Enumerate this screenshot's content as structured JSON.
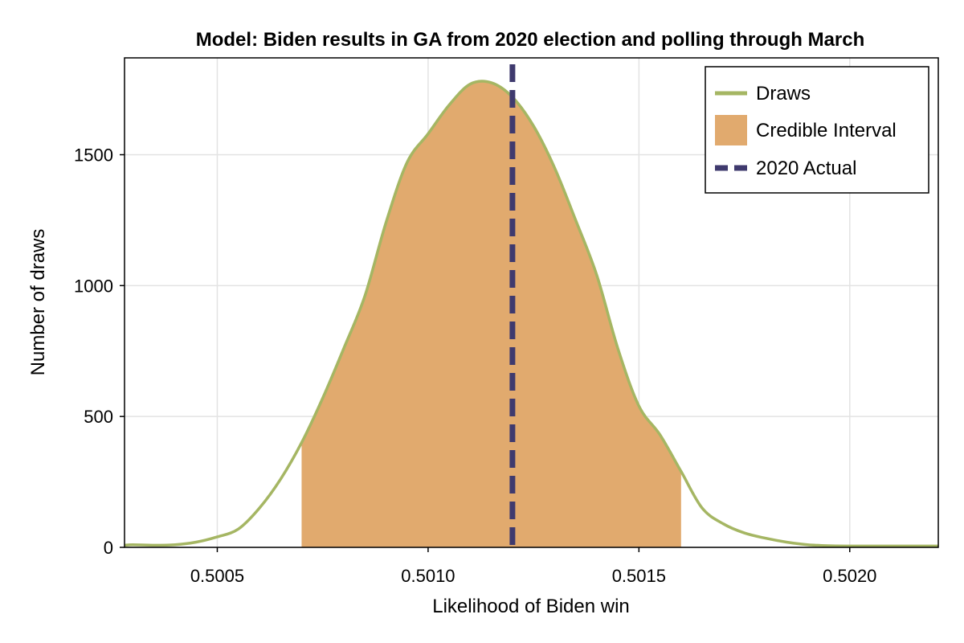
{
  "chart_data": {
    "type": "area",
    "title": "Model: Biden results in GA from 2020 election and polling through March",
    "xlabel": "Likelihood of Biden win",
    "ylabel": "Number of draws",
    "xlim": [
      0.50028,
      0.50221
    ],
    "ylim": [
      0,
      1870
    ],
    "xticks": [
      0.5005,
      0.501,
      0.5015,
      0.502
    ],
    "xtick_labels": [
      "0.5005",
      "0.5010",
      "0.5015",
      "0.5020"
    ],
    "yticks": [
      0,
      500,
      1000,
      1500
    ],
    "ytick_labels": [
      "0",
      "500",
      "1000",
      "1500"
    ],
    "grid": true,
    "legend_position": "top-right",
    "colors": {
      "draws": "#a5b663",
      "credible_interval": "#e1aa6e",
      "actual": "#3f3a6e"
    },
    "series": [
      {
        "name": "Draws",
        "kind": "line",
        "x": [
          0.50028,
          0.5003,
          0.50035,
          0.5004,
          0.50045,
          0.5005,
          0.50055,
          0.5006,
          0.50065,
          0.5007,
          0.50075,
          0.5008,
          0.50085,
          0.5009,
          0.50095,
          0.501,
          0.50105,
          0.5011,
          0.50115,
          0.5012,
          0.50125,
          0.5013,
          0.50135,
          0.5014,
          0.50145,
          0.5015,
          0.50155,
          0.5016,
          0.50165,
          0.5017,
          0.50175,
          0.5018,
          0.50185,
          0.5019,
          0.50195,
          0.502,
          0.50205,
          0.5021,
          0.50215,
          0.50221
        ],
        "y": [
          8,
          10,
          8,
          10,
          20,
          40,
          70,
          150,
          260,
          400,
          570,
          760,
          960,
          1240,
          1470,
          1580,
          1690,
          1770,
          1775,
          1720,
          1610,
          1450,
          1250,
          1040,
          760,
          540,
          430,
          290,
          150,
          90,
          55,
          35,
          20,
          10,
          6,
          5,
          5,
          5,
          5,
          5
        ]
      },
      {
        "name": "Credible Interval",
        "kind": "area",
        "x_range": [
          0.5007,
          0.5016
        ]
      },
      {
        "name": "2020 Actual",
        "kind": "vline",
        "x": 0.5012
      }
    ]
  }
}
